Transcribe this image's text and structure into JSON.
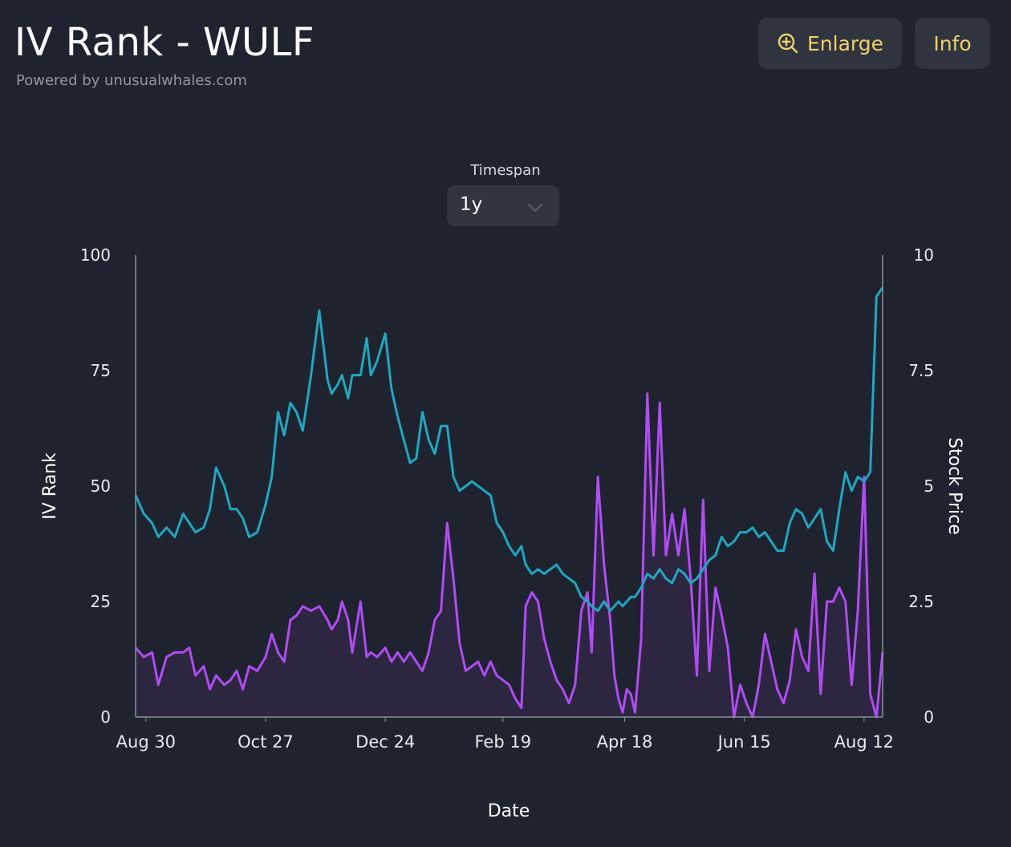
{
  "header": {
    "title": "IV Rank - WULF",
    "subtitle": "Powered by unusualwhales.com"
  },
  "toolbar": {
    "enlarge_label": "Enlarge",
    "enlarge_icon": "zoom-in-icon",
    "info_label": "Info"
  },
  "timespan": {
    "label": "Timespan",
    "value": "1y"
  },
  "colors": {
    "background": "#1f2330",
    "accent": "#f0cf6a",
    "iv_rank": "#b04cf2",
    "iv_rank_fill": "#2d2640",
    "stock_price": "#22a6bf"
  },
  "chart_data": {
    "type": "line",
    "xlabel": "Date",
    "ylabel_left": "IV Rank",
    "ylabel_right": "Stock Price",
    "ylim_left": [
      0,
      100
    ],
    "ylim_right": [
      0,
      10
    ],
    "yticks_left": [
      "0",
      "25",
      "50",
      "75",
      "100"
    ],
    "yticks_right": [
      "0",
      "2.5",
      "5",
      "7.5",
      "10"
    ],
    "x_range": [
      "2023-08-25",
      "2024-08-21"
    ],
    "x_ticks": [
      {
        "date": "2023-08-30",
        "label": "Aug 30"
      },
      {
        "date": "2023-10-27",
        "label": "Oct 27"
      },
      {
        "date": "2023-12-24",
        "label": "Dec 24"
      },
      {
        "date": "2024-02-19",
        "label": "Feb 19"
      },
      {
        "date": "2024-04-18",
        "label": "Apr 18"
      },
      {
        "date": "2024-06-15",
        "label": "Jun 15"
      },
      {
        "date": "2024-08-12",
        "label": "Aug 12"
      }
    ],
    "series": [
      {
        "axis": "left",
        "style": "area",
        "points": [
          [
            "2023-08-25",
            15
          ],
          [
            "2023-08-29",
            13
          ],
          [
            "2023-09-02",
            14
          ],
          [
            "2023-09-05",
            7
          ],
          [
            "2023-09-09",
            13
          ],
          [
            "2023-09-13",
            14
          ],
          [
            "2023-09-17",
            14
          ],
          [
            "2023-09-20",
            15
          ],
          [
            "2023-09-23",
            9
          ],
          [
            "2023-09-27",
            11
          ],
          [
            "2023-09-30",
            6
          ],
          [
            "2023-10-03",
            9
          ],
          [
            "2023-10-07",
            7
          ],
          [
            "2023-10-10",
            8
          ],
          [
            "2023-10-13",
            10
          ],
          [
            "2023-10-16",
            6
          ],
          [
            "2023-10-19",
            11
          ],
          [
            "2023-10-23",
            10
          ],
          [
            "2023-10-27",
            13
          ],
          [
            "2023-10-30",
            18
          ],
          [
            "2023-11-02",
            14
          ],
          [
            "2023-11-05",
            12
          ],
          [
            "2023-11-08",
            21
          ],
          [
            "2023-11-11",
            22
          ],
          [
            "2023-11-14",
            24
          ],
          [
            "2023-11-18",
            23
          ],
          [
            "2023-11-22",
            24
          ],
          [
            "2023-11-26",
            21
          ],
          [
            "2023-11-28",
            19
          ],
          [
            "2023-12-01",
            21
          ],
          [
            "2023-12-03",
            25
          ],
          [
            "2023-12-06",
            21
          ],
          [
            "2023-12-08",
            14
          ],
          [
            "2023-12-12",
            25
          ],
          [
            "2023-12-15",
            13
          ],
          [
            "2023-12-17",
            14
          ],
          [
            "2023-12-20",
            13
          ],
          [
            "2023-12-24",
            15
          ],
          [
            "2023-12-27",
            12
          ],
          [
            "2023-12-30",
            14
          ],
          [
            "2024-01-02",
            12
          ],
          [
            "2024-01-05",
            14
          ],
          [
            "2024-01-08",
            12
          ],
          [
            "2024-01-11",
            10
          ],
          [
            "2024-01-14",
            14
          ],
          [
            "2024-01-17",
            21
          ],
          [
            "2024-01-20",
            23
          ],
          [
            "2024-01-23",
            42
          ],
          [
            "2024-01-26",
            30
          ],
          [
            "2024-01-29",
            16
          ],
          [
            "2024-02-01",
            10
          ],
          [
            "2024-02-04",
            11
          ],
          [
            "2024-02-07",
            12
          ],
          [
            "2024-02-10",
            9
          ],
          [
            "2024-02-13",
            12
          ],
          [
            "2024-02-16",
            9
          ],
          [
            "2024-02-19",
            8
          ],
          [
            "2024-02-22",
            7
          ],
          [
            "2024-02-25",
            4
          ],
          [
            "2024-02-28",
            2
          ],
          [
            "2024-03-01",
            24
          ],
          [
            "2024-03-04",
            27
          ],
          [
            "2024-03-07",
            25
          ],
          [
            "2024-03-10",
            17
          ],
          [
            "2024-03-13",
            12
          ],
          [
            "2024-03-16",
            8
          ],
          [
            "2024-03-19",
            6
          ],
          [
            "2024-03-22",
            3
          ],
          [
            "2024-03-25",
            7
          ],
          [
            "2024-03-28",
            23
          ],
          [
            "2024-03-31",
            27
          ],
          [
            "2024-04-02",
            14
          ],
          [
            "2024-04-05",
            52
          ],
          [
            "2024-04-08",
            33
          ],
          [
            "2024-04-11",
            21
          ],
          [
            "2024-04-13",
            9
          ],
          [
            "2024-04-15",
            4
          ],
          [
            "2024-04-17",
            1
          ],
          [
            "2024-04-19",
            6
          ],
          [
            "2024-04-21",
            5
          ],
          [
            "2024-04-23",
            1
          ],
          [
            "2024-04-26",
            17
          ],
          [
            "2024-04-29",
            70
          ],
          [
            "2024-05-02",
            35
          ],
          [
            "2024-05-05",
            68
          ],
          [
            "2024-05-08",
            35
          ],
          [
            "2024-05-11",
            44
          ],
          [
            "2024-05-14",
            35
          ],
          [
            "2024-05-17",
            45
          ],
          [
            "2024-05-20",
            30
          ],
          [
            "2024-05-23",
            9
          ],
          [
            "2024-05-26",
            47
          ],
          [
            "2024-05-29",
            10
          ],
          [
            "2024-06-01",
            28
          ],
          [
            "2024-06-04",
            22
          ],
          [
            "2024-06-07",
            15
          ],
          [
            "2024-06-10",
            0
          ],
          [
            "2024-06-13",
            7
          ],
          [
            "2024-06-16",
            3
          ],
          [
            "2024-06-19",
            0
          ],
          [
            "2024-06-22",
            7
          ],
          [
            "2024-06-25",
            18
          ],
          [
            "2024-06-28",
            12
          ],
          [
            "2024-07-01",
            6
          ],
          [
            "2024-07-04",
            3
          ],
          [
            "2024-07-07",
            8
          ],
          [
            "2024-07-10",
            19
          ],
          [
            "2024-07-13",
            13
          ],
          [
            "2024-07-16",
            10
          ],
          [
            "2024-07-19",
            31
          ],
          [
            "2024-07-22",
            5
          ],
          [
            "2024-07-25",
            25
          ],
          [
            "2024-07-28",
            25
          ],
          [
            "2024-07-31",
            28
          ],
          [
            "2024-08-03",
            25
          ],
          [
            "2024-08-06",
            7
          ],
          [
            "2024-08-09",
            23
          ],
          [
            "2024-08-12",
            52
          ],
          [
            "2024-08-15",
            5
          ],
          [
            "2024-08-18",
            0
          ],
          [
            "2024-08-21",
            14
          ]
        ]
      },
      {
        "axis": "right",
        "style": "line",
        "points": [
          [
            "2023-08-25",
            4.8
          ],
          [
            "2023-08-29",
            4.4
          ],
          [
            "2023-09-02",
            4.2
          ],
          [
            "2023-09-05",
            3.9
          ],
          [
            "2023-09-09",
            4.1
          ],
          [
            "2023-09-13",
            3.9
          ],
          [
            "2023-09-17",
            4.4
          ],
          [
            "2023-09-20",
            4.2
          ],
          [
            "2023-09-23",
            4.0
          ],
          [
            "2023-09-27",
            4.1
          ],
          [
            "2023-09-30",
            4.5
          ],
          [
            "2023-10-03",
            5.4
          ],
          [
            "2023-10-07",
            5.0
          ],
          [
            "2023-10-10",
            4.5
          ],
          [
            "2023-10-13",
            4.5
          ],
          [
            "2023-10-16",
            4.3
          ],
          [
            "2023-10-19",
            3.9
          ],
          [
            "2023-10-23",
            4.0
          ],
          [
            "2023-10-27",
            4.6
          ],
          [
            "2023-10-30",
            5.2
          ],
          [
            "2023-11-02",
            6.6
          ],
          [
            "2023-11-05",
            6.1
          ],
          [
            "2023-11-08",
            6.8
          ],
          [
            "2023-11-11",
            6.6
          ],
          [
            "2023-11-14",
            6.2
          ],
          [
            "2023-11-18",
            7.4
          ],
          [
            "2023-11-22",
            8.8
          ],
          [
            "2023-11-26",
            7.3
          ],
          [
            "2023-11-28",
            7.0
          ],
          [
            "2023-12-01",
            7.2
          ],
          [
            "2023-12-03",
            7.4
          ],
          [
            "2023-12-06",
            6.9
          ],
          [
            "2023-12-08",
            7.4
          ],
          [
            "2023-12-12",
            7.4
          ],
          [
            "2023-12-15",
            8.2
          ],
          [
            "2023-12-17",
            7.4
          ],
          [
            "2023-12-20",
            7.7
          ],
          [
            "2023-12-24",
            8.3
          ],
          [
            "2023-12-27",
            7.1
          ],
          [
            "2023-12-30",
            6.5
          ],
          [
            "2024-01-02",
            6.0
          ],
          [
            "2024-01-05",
            5.5
          ],
          [
            "2024-01-08",
            5.6
          ],
          [
            "2024-01-11",
            6.6
          ],
          [
            "2024-01-14",
            6.0
          ],
          [
            "2024-01-17",
            5.7
          ],
          [
            "2024-01-20",
            6.3
          ],
          [
            "2024-01-23",
            6.3
          ],
          [
            "2024-01-26",
            5.2
          ],
          [
            "2024-01-29",
            4.9
          ],
          [
            "2024-02-01",
            5.0
          ],
          [
            "2024-02-04",
            5.1
          ],
          [
            "2024-02-07",
            5.0
          ],
          [
            "2024-02-10",
            4.9
          ],
          [
            "2024-02-13",
            4.8
          ],
          [
            "2024-02-16",
            4.2
          ],
          [
            "2024-02-19",
            4.0
          ],
          [
            "2024-02-22",
            3.7
          ],
          [
            "2024-02-25",
            3.5
          ],
          [
            "2024-02-28",
            3.7
          ],
          [
            "2024-03-01",
            3.3
          ],
          [
            "2024-03-04",
            3.1
          ],
          [
            "2024-03-07",
            3.2
          ],
          [
            "2024-03-10",
            3.1
          ],
          [
            "2024-03-13",
            3.2
          ],
          [
            "2024-03-16",
            3.3
          ],
          [
            "2024-03-19",
            3.1
          ],
          [
            "2024-03-22",
            3.0
          ],
          [
            "2024-03-25",
            2.9
          ],
          [
            "2024-03-28",
            2.6
          ],
          [
            "2024-03-31",
            2.5
          ],
          [
            "2024-04-02",
            2.4
          ],
          [
            "2024-04-05",
            2.3
          ],
          [
            "2024-04-08",
            2.5
          ],
          [
            "2024-04-11",
            2.3
          ],
          [
            "2024-04-13",
            2.4
          ],
          [
            "2024-04-15",
            2.5
          ],
          [
            "2024-04-17",
            2.4
          ],
          [
            "2024-04-19",
            2.5
          ],
          [
            "2024-04-21",
            2.6
          ],
          [
            "2024-04-23",
            2.6
          ],
          [
            "2024-04-26",
            2.8
          ],
          [
            "2024-04-29",
            3.1
          ],
          [
            "2024-05-02",
            3.0
          ],
          [
            "2024-05-05",
            3.2
          ],
          [
            "2024-05-08",
            3.0
          ],
          [
            "2024-05-11",
            2.9
          ],
          [
            "2024-05-14",
            3.2
          ],
          [
            "2024-05-17",
            3.1
          ],
          [
            "2024-05-20",
            2.9
          ],
          [
            "2024-05-23",
            3.0
          ],
          [
            "2024-05-26",
            3.2
          ],
          [
            "2024-05-29",
            3.4
          ],
          [
            "2024-06-01",
            3.5
          ],
          [
            "2024-06-04",
            3.9
          ],
          [
            "2024-06-07",
            3.7
          ],
          [
            "2024-06-10",
            3.8
          ],
          [
            "2024-06-13",
            4.0
          ],
          [
            "2024-06-16",
            4.0
          ],
          [
            "2024-06-19",
            4.1
          ],
          [
            "2024-06-22",
            3.9
          ],
          [
            "2024-06-25",
            4.0
          ],
          [
            "2024-06-28",
            3.8
          ],
          [
            "2024-07-01",
            3.6
          ],
          [
            "2024-07-04",
            3.6
          ],
          [
            "2024-07-07",
            4.2
          ],
          [
            "2024-07-10",
            4.5
          ],
          [
            "2024-07-13",
            4.4
          ],
          [
            "2024-07-16",
            4.1
          ],
          [
            "2024-07-19",
            4.3
          ],
          [
            "2024-07-22",
            4.5
          ],
          [
            "2024-07-25",
            3.8
          ],
          [
            "2024-07-28",
            3.6
          ],
          [
            "2024-07-31",
            4.5
          ],
          [
            "2024-08-03",
            5.3
          ],
          [
            "2024-08-06",
            4.9
          ],
          [
            "2024-08-09",
            5.2
          ],
          [
            "2024-08-12",
            5.1
          ],
          [
            "2024-08-15",
            5.3
          ],
          [
            "2024-08-18",
            9.1
          ],
          [
            "2024-08-21",
            9.3
          ]
        ]
      }
    ]
  }
}
